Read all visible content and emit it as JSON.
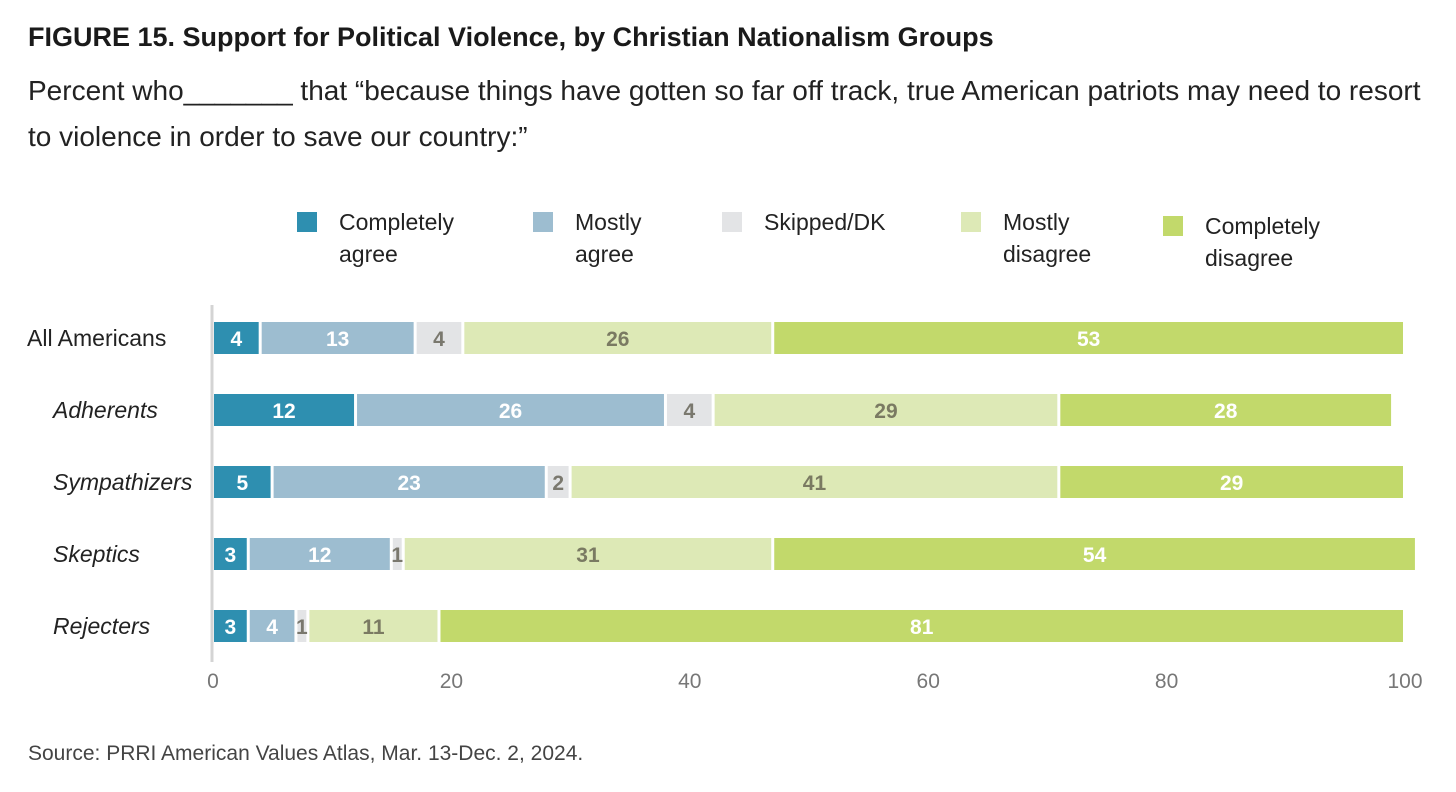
{
  "title": "FIGURE 15.  Support for Political Violence, by Christian Nationalism Groups",
  "subtitle": "Percent who_______ that “because things have gotten so far off track, true American patriots may need to resort to violence in order to save our country:”",
  "source": "Source: PRRI American Values Atlas, Mar. 13-Dec. 2, 2024.",
  "chart_data": {
    "type": "bar",
    "orientation": "horizontal",
    "stacked": true,
    "categories": [
      "All Americans",
      "Adherents",
      "Sympathizers",
      "Skeptics",
      "Rejecters"
    ],
    "category_italic": [
      false,
      true,
      true,
      true,
      true
    ],
    "series": [
      {
        "name": "Completely agree",
        "legend_lines": [
          "Completely",
          "agree"
        ],
        "color": "#2e8fb0",
        "label_color": "#ffffff",
        "values": [
          4,
          12,
          5,
          3,
          3
        ]
      },
      {
        "name": "Mostly agree",
        "legend_lines": [
          "Mostly",
          "agree"
        ],
        "color": "#9dbdd0",
        "label_color": "#ffffff",
        "values": [
          13,
          26,
          23,
          12,
          4
        ]
      },
      {
        "name": "Skipped/DK",
        "legend_lines": [
          "Skipped/DK"
        ],
        "color": "#e3e4e6",
        "label_color": "#7a786e",
        "values": [
          4,
          4,
          2,
          1,
          1
        ]
      },
      {
        "name": "Mostly disagree",
        "legend_lines": [
          "Mostly",
          "disagree"
        ],
        "color": "#dde9b6",
        "label_color": "#7a7a62",
        "values": [
          26,
          29,
          41,
          31,
          11
        ]
      },
      {
        "name": "Completely disagree",
        "legend_lines": [
          "Completely",
          "disagree"
        ],
        "color": "#c2d96b",
        "label_color": "#ffffff",
        "values": [
          53,
          28,
          29,
          54,
          81
        ]
      }
    ],
    "xlim": [
      0,
      100
    ],
    "xticks": [
      0,
      20,
      40,
      60,
      80,
      100
    ],
    "xlabel": "",
    "ylabel": "",
    "grid": false,
    "legend_position": "top"
  }
}
